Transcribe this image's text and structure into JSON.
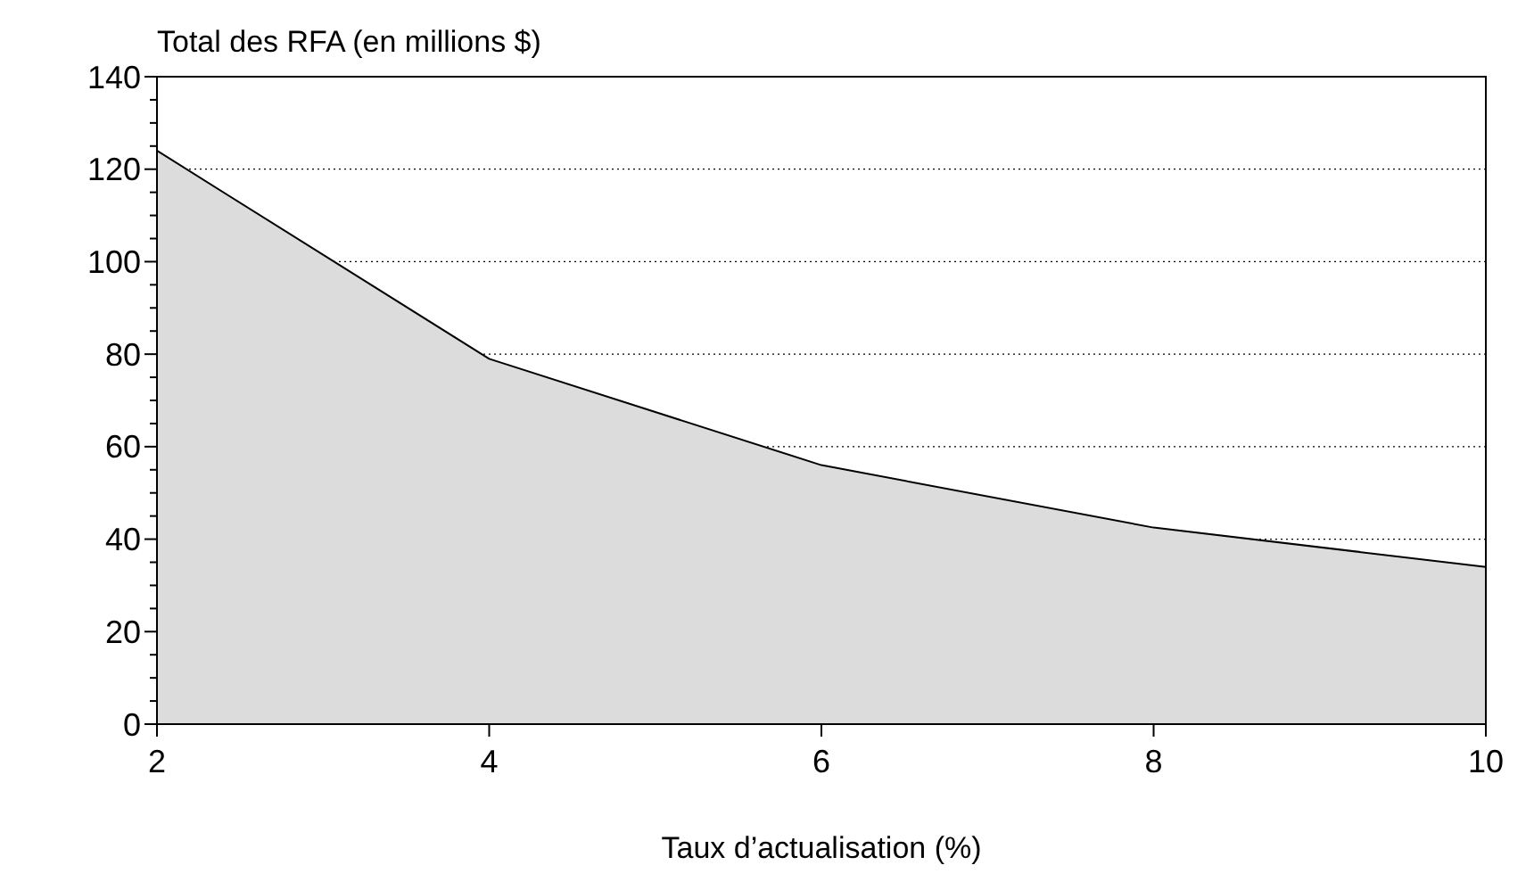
{
  "chart_data": {
    "type": "area",
    "ylabel": "Total des RFA (en millions $)",
    "xlabel": "Taux d’actualisation (%)",
    "x": [
      2,
      4,
      6,
      8,
      10
    ],
    "series": [
      {
        "color": "#dcdcdc",
        "values": [
          124,
          79,
          56,
          42.5,
          34
        ]
      }
    ],
    "xlim": [
      2,
      10
    ],
    "xticks": [
      2,
      4,
      6,
      8,
      10
    ],
    "ylim": [
      0,
      140
    ],
    "yticks": [
      0,
      {
        "value": 5,
        "label": null
      },
      {
        "value": 10,
        "label": null
      },
      {
        "value": 15,
        "label": null
      },
      20,
      {
        "value": 25,
        "label": null
      },
      {
        "value": 30,
        "label": null
      },
      {
        "value": 35,
        "label": null
      },
      40,
      {
        "value": 45,
        "label": null
      },
      {
        "value": 50,
        "label": null
      },
      {
        "value": 55,
        "label": null
      },
      60,
      {
        "value": 65,
        "label": null
      },
      {
        "value": 70,
        "label": null
      },
      {
        "value": 75,
        "label": null
      },
      80,
      {
        "value": 85,
        "label": null
      },
      {
        "value": 90,
        "label": null
      },
      {
        "value": 95,
        "label": null
      },
      100,
      {
        "value": 105,
        "label": null
      },
      {
        "value": 110,
        "label": null
      },
      {
        "value": 115,
        "label": null
      },
      120,
      {
        "value": 125,
        "label": null
      },
      {
        "value": 130,
        "label": null
      },
      {
        "value": 135,
        "label": null
      },
      140
    ],
    "grid": "y"
  }
}
